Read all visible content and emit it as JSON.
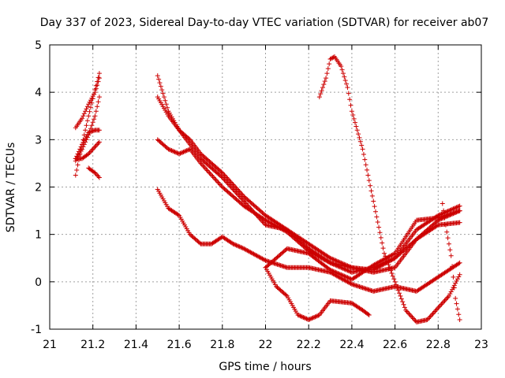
{
  "chart_data": {
    "type": "scatter",
    "title": "Day 337 of 2023, Sidereal Day-to-day VTEC variation (SDTVAR) for receiver ab07",
    "xlabel": "GPS time / hours",
    "ylabel": "SDTVAR / TECUs",
    "xlim": [
      21,
      23
    ],
    "ylim": [
      -1,
      5
    ],
    "xticks": [
      "21",
      "21.2",
      "21.4",
      "21.6",
      "21.8",
      "22",
      "22.2",
      "22.4",
      "22.6",
      "22.8",
      "23"
    ],
    "yticks": [
      "-1",
      "0",
      "1",
      "2",
      "3",
      "4",
      "5"
    ],
    "grid": true,
    "marker": "+",
    "marker_color": "#cc0000",
    "series": [
      {
        "name": "s1",
        "x": [
          21.12,
          21.15,
          21.18,
          21.21,
          21.23
        ],
        "y": [
          2.25,
          2.9,
          3.5,
          4.05,
          4.4
        ]
      },
      {
        "name": "s2",
        "x": [
          21.12,
          21.15,
          21.18,
          21.21,
          21.23
        ],
        "y": [
          3.25,
          3.45,
          3.75,
          4.0,
          4.3
        ]
      },
      {
        "name": "s3",
        "x": [
          21.12,
          21.15,
          21.18,
          21.21,
          21.23
        ],
        "y": [
          2.55,
          2.8,
          3.1,
          3.5,
          3.9
        ]
      },
      {
        "name": "s4",
        "x": [
          21.12,
          21.15,
          21.18,
          21.21,
          21.23
        ],
        "y": [
          2.6,
          2.9,
          3.15,
          3.2,
          3.2
        ]
      },
      {
        "name": "s5",
        "x": [
          21.12,
          21.15,
          21.18,
          21.21,
          21.23
        ],
        "y": [
          2.6,
          2.6,
          2.7,
          2.85,
          2.95
        ]
      },
      {
        "name": "s6",
        "x": [
          21.18,
          21.21,
          21.23
        ],
        "y": [
          2.4,
          2.3,
          2.2
        ]
      },
      {
        "name": "s7",
        "x": [
          21.5,
          21.55,
          21.6,
          21.65,
          21.7,
          21.8,
          21.9,
          22.0,
          22.1,
          22.2,
          22.3,
          22.4,
          22.5,
          22.6,
          22.7,
          22.8,
          22.9
        ],
        "y": [
          4.35,
          3.6,
          3.2,
          3.0,
          2.7,
          2.3,
          1.8,
          1.4,
          1.1,
          0.7,
          0.4,
          0.2,
          0.3,
          0.5,
          0.9,
          1.2,
          1.25
        ]
      },
      {
        "name": "s8",
        "x": [
          21.5,
          21.55,
          21.6,
          21.65,
          21.7,
          21.8,
          21.9,
          22.0,
          22.1,
          22.2,
          22.3,
          22.4,
          22.5,
          22.6,
          22.7,
          22.8,
          22.9
        ],
        "y": [
          3.9,
          3.5,
          3.2,
          2.9,
          2.6,
          2.2,
          1.7,
          1.2,
          1.1,
          0.8,
          0.5,
          0.3,
          0.25,
          0.5,
          1.1,
          1.4,
          1.6
        ]
      },
      {
        "name": "s9",
        "x": [
          21.5,
          21.55,
          21.6,
          21.65,
          21.7,
          21.8,
          21.9,
          22.0,
          22.1,
          22.2,
          22.3,
          22.4,
          22.5,
          22.6,
          22.7,
          22.8,
          22.9
        ],
        "y": [
          3.0,
          2.8,
          2.7,
          2.8,
          2.5,
          2.0,
          1.6,
          1.3,
          1.05,
          0.65,
          0.4,
          0.3,
          0.2,
          0.3,
          0.9,
          1.3,
          1.5
        ]
      },
      {
        "name": "s10",
        "x": [
          21.5,
          21.55,
          21.6,
          21.65,
          21.7,
          21.75,
          21.8,
          21.85,
          21.9,
          22.0,
          22.1,
          22.2,
          22.3,
          22.4,
          22.5,
          22.6,
          22.7,
          22.8,
          22.9
        ],
        "y": [
          1.95,
          1.55,
          1.4,
          1.0,
          0.8,
          0.8,
          0.95,
          0.8,
          0.7,
          0.45,
          0.3,
          0.3,
          0.2,
          -0.05,
          -0.2,
          -0.1,
          -0.2,
          0.1,
          0.4
        ]
      },
      {
        "name": "s11",
        "x": [
          22.0,
          22.1,
          22.2,
          22.3,
          22.4,
          22.5,
          22.6,
          22.7,
          22.8,
          22.9
        ],
        "y": [
          0.3,
          0.7,
          0.6,
          0.25,
          0.05,
          0.35,
          0.6,
          1.3,
          1.35,
          1.5
        ]
      },
      {
        "name": "s12",
        "x": [
          22.0,
          22.05,
          22.1,
          22.15,
          22.2,
          22.25,
          22.3,
          22.4,
          22.45,
          22.48
        ],
        "y": [
          0.3,
          -0.1,
          -0.3,
          -0.7,
          -0.8,
          -0.7,
          -0.4,
          -0.45,
          -0.6,
          -0.7
        ]
      },
      {
        "name": "s13",
        "x": [
          22.25,
          22.28,
          22.3,
          22.32,
          22.35,
          22.38,
          22.4,
          22.45,
          22.5,
          22.55,
          22.6,
          22.65,
          22.7,
          22.75,
          22.8,
          22.85,
          22.9
        ],
        "y": [
          3.9,
          4.3,
          4.7,
          4.75,
          4.55,
          4.1,
          3.6,
          2.8,
          1.7,
          0.6,
          0.0,
          -0.6,
          -0.85,
          -0.8,
          -0.55,
          -0.3,
          0.15
        ]
      },
      {
        "name": "s14",
        "x": [
          22.82,
          22.84,
          22.86,
          22.88,
          22.9
        ],
        "y": [
          1.65,
          1.05,
          0.55,
          -0.35,
          -0.8
        ]
      }
    ]
  }
}
